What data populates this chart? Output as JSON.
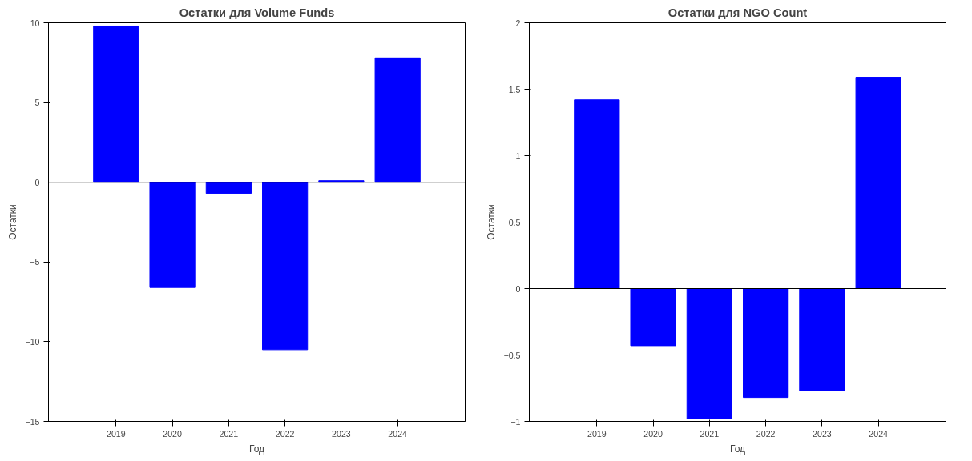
{
  "chart_data": [
    {
      "type": "bar",
      "title": "Остатки для Volume Funds",
      "xlabel": "Год",
      "ylabel": "Остатки",
      "categories": [
        "2019",
        "2020",
        "2021",
        "2022",
        "2023",
        "2024"
      ],
      "values": [
        9.8,
        -6.6,
        -0.7,
        -10.5,
        0.1,
        7.8
      ],
      "color": "#0000ff",
      "ylim": [
        -15,
        10
      ],
      "yticks": [
        -15,
        -10,
        -5,
        0,
        5,
        10
      ],
      "grid": false,
      "ref_lines": [
        {
          "axis": "y",
          "value": 0,
          "label": null,
          "color": "#000000"
        }
      ]
    },
    {
      "type": "bar",
      "title": "Остатки для NGO Count",
      "xlabel": "Год",
      "ylabel": "Остатки",
      "categories": [
        "2019",
        "2020",
        "2021",
        "2022",
        "2023",
        "2024"
      ],
      "values": [
        1.42,
        -0.43,
        -0.98,
        -0.82,
        -0.77,
        1.59
      ],
      "color": "#0000ff",
      "ylim": [
        -1,
        2
      ],
      "yticks": [
        -1,
        -0.5,
        0,
        0.5,
        1,
        1.5,
        2
      ],
      "grid": false,
      "ref_lines": [
        {
          "axis": "y",
          "value": 0,
          "label": null,
          "color": "#000000"
        }
      ]
    }
  ]
}
